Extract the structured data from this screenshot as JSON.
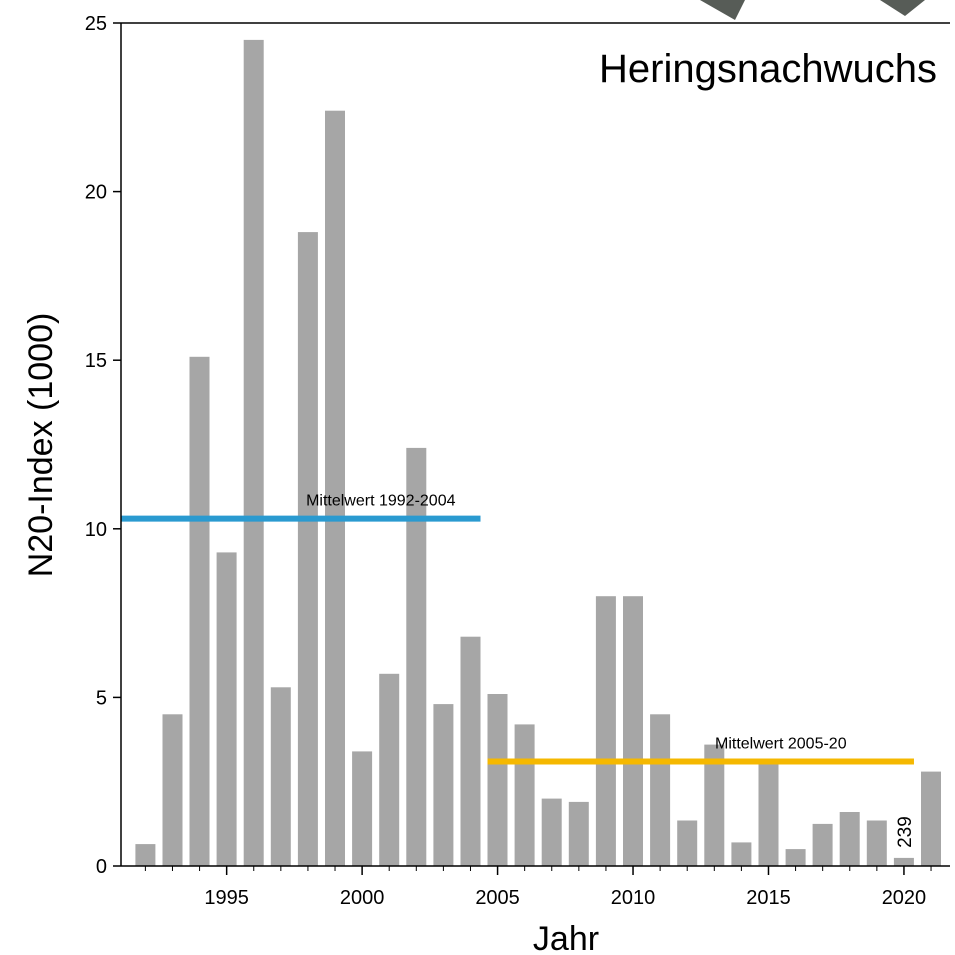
{
  "chart_data": {
    "type": "bar",
    "title": "Heringsnachwuchs",
    "xlabel": "Jahr",
    "ylabel": "N20-Index (1000)",
    "ylim": [
      0,
      25
    ],
    "xlim": [
      1991.1,
      2021.7
    ],
    "yticks": [
      0,
      5,
      10,
      15,
      20,
      25
    ],
    "xticks": [
      1995,
      2000,
      2005,
      2010,
      2015,
      2020
    ],
    "x": [
      1992,
      1993,
      1994,
      1995,
      1996,
      1997,
      1998,
      1999,
      2000,
      2001,
      2002,
      2003,
      2004,
      2005,
      2006,
      2007,
      2008,
      2009,
      2010,
      2011,
      2012,
      2013,
      2014,
      2015,
      2016,
      2017,
      2018,
      2019,
      2020,
      2021
    ],
    "values": [
      0.65,
      4.5,
      15.1,
      9.3,
      24.5,
      5.3,
      18.8,
      22.4,
      3.4,
      5.7,
      12.4,
      4.8,
      6.8,
      5.1,
      4.2,
      2.0,
      1.9,
      8.0,
      8.0,
      4.5,
      1.35,
      3.6,
      0.7,
      3.1,
      0.5,
      1.25,
      1.6,
      1.35,
      0.239,
      2.8
    ],
    "bar_color": "#a6a6a6",
    "bar_annotation": {
      "year": 2020,
      "text": "239"
    },
    "reference_lines": [
      {
        "label": "Mittelwert 1992-2004",
        "value": 10.3,
        "x_start": 1992,
        "x_end": 2004,
        "color": "#2a9ad0"
      },
      {
        "label": "Mittelwert 2005-20",
        "value": 3.1,
        "x_start": 2005,
        "x_end": 2020,
        "color": "#f5b800"
      }
    ]
  }
}
